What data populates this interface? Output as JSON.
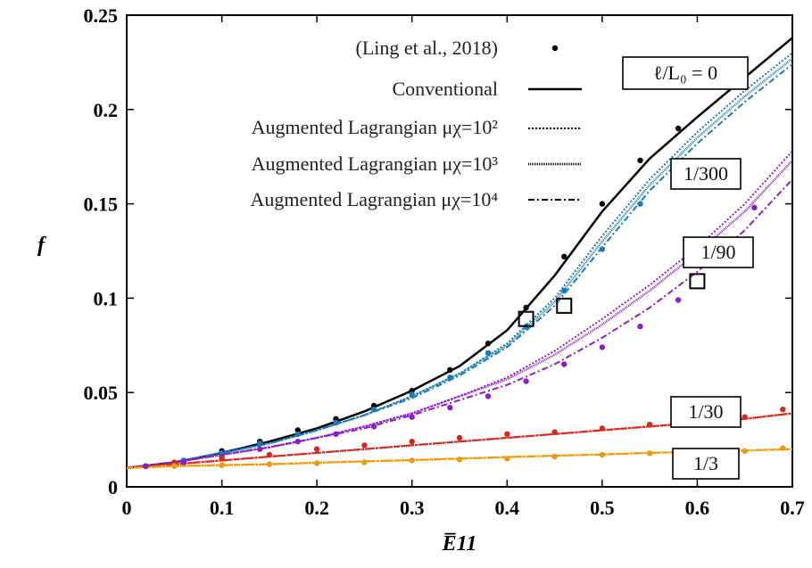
{
  "chart_data": {
    "type": "line",
    "xlabel": "E̅11",
    "ylabel": "f",
    "xlim": [
      0,
      0.7
    ],
    "ylim": [
      0,
      0.25
    ],
    "xticks": [
      "0",
      "0.1",
      "0.2",
      "0.3",
      "0.4",
      "0.5",
      "0.6",
      "0.7"
    ],
    "yticks": [
      "0",
      "0.05",
      "0.1",
      "0.15",
      "0.2",
      "0.25"
    ],
    "grid": false,
    "legend_position": "top-right",
    "legend": [
      {
        "label": "(Ling et al., 2018)",
        "style": "dots"
      },
      {
        "label": "Conventional",
        "style": "solid"
      },
      {
        "label": "Augmented Lagrangian μχ=10²",
        "style": "dotted"
      },
      {
        "label": "Augmented Lagrangian μχ=10³",
        "style": "fine-dotted"
      },
      {
        "label": "Augmented Lagrangian μχ=10⁴",
        "style": "dash-dot"
      }
    ],
    "curve_labels": [
      "ℓ/L₀ = 0",
      "1/300",
      "1/90",
      "1/30",
      "1/3"
    ],
    "groups": [
      {
        "label": "ℓ/L₀ = 0",
        "color": "#000000",
        "x": [
          0,
          0.05,
          0.1,
          0.15,
          0.2,
          0.25,
          0.3,
          0.35,
          0.4,
          0.45,
          0.5,
          0.55,
          0.6,
          0.65,
          0.7
        ],
        "conventional": [
          0.01,
          0.013,
          0.018,
          0.024,
          0.031,
          0.04,
          0.051,
          0.064,
          0.083,
          0.112,
          0.146,
          0.174,
          0.196,
          0.217,
          0.238
        ],
        "mu2": [
          0.01,
          0.013,
          0.018,
          0.024,
          0.031,
          0.04,
          0.051,
          0.064,
          0.083,
          0.112,
          0.146,
          0.174,
          0.196,
          0.217,
          0.238
        ],
        "mu3": [
          0.01,
          0.013,
          0.018,
          0.024,
          0.031,
          0.04,
          0.051,
          0.064,
          0.083,
          0.112,
          0.146,
          0.174,
          0.196,
          0.217,
          0.238
        ],
        "mu4": [
          0.01,
          0.013,
          0.018,
          0.024,
          0.031,
          0.04,
          0.051,
          0.064,
          0.083,
          0.112,
          0.146,
          0.174,
          0.196,
          0.217,
          0.238
        ],
        "ling_x": [
          0.02,
          0.06,
          0.1,
          0.14,
          0.18,
          0.22,
          0.26,
          0.3,
          0.34,
          0.38,
          0.42,
          0.46,
          0.5,
          0.54,
          0.58
        ],
        "ling_y": [
          0.011,
          0.014,
          0.019,
          0.024,
          0.03,
          0.036,
          0.043,
          0.051,
          0.062,
          0.076,
          0.095,
          0.122,
          0.15,
          0.173,
          0.19
        ]
      },
      {
        "label": "1/300",
        "color": "#1a7ab5",
        "x": [
          0,
          0.05,
          0.1,
          0.15,
          0.2,
          0.25,
          0.3,
          0.35,
          0.4,
          0.45,
          0.5,
          0.55,
          0.6,
          0.65,
          0.7
        ],
        "mu2": [
          0.01,
          0.013,
          0.018,
          0.023,
          0.03,
          0.038,
          0.048,
          0.06,
          0.076,
          0.1,
          0.133,
          0.163,
          0.188,
          0.21,
          0.23
        ],
        "mu3": [
          0.01,
          0.013,
          0.018,
          0.023,
          0.03,
          0.038,
          0.048,
          0.06,
          0.075,
          0.098,
          0.13,
          0.16,
          0.185,
          0.207,
          0.227
        ],
        "mu4": [
          0.01,
          0.013,
          0.018,
          0.023,
          0.03,
          0.038,
          0.047,
          0.059,
          0.074,
          0.096,
          0.127,
          0.157,
          0.182,
          0.204,
          0.224
        ],
        "ling_x": [
          0.02,
          0.06,
          0.1,
          0.14,
          0.18,
          0.22,
          0.26,
          0.3,
          0.34,
          0.38,
          0.42,
          0.46,
          0.5,
          0.54,
          0.58
        ],
        "ling_y": [
          0.011,
          0.014,
          0.018,
          0.023,
          0.028,
          0.034,
          0.041,
          0.049,
          0.058,
          0.071,
          0.085,
          0.104,
          0.126,
          0.15,
          0.168
        ]
      },
      {
        "label": "1/90",
        "color": "#8a1fc9",
        "x": [
          0,
          0.05,
          0.1,
          0.15,
          0.2,
          0.25,
          0.3,
          0.35,
          0.4,
          0.45,
          0.5,
          0.55,
          0.6,
          0.65,
          0.7
        ],
        "mu2": [
          0.01,
          0.013,
          0.017,
          0.021,
          0.026,
          0.032,
          0.039,
          0.048,
          0.058,
          0.072,
          0.089,
          0.107,
          0.127,
          0.15,
          0.178
        ],
        "mu3": [
          0.01,
          0.013,
          0.017,
          0.021,
          0.026,
          0.032,
          0.039,
          0.048,
          0.057,
          0.07,
          0.086,
          0.104,
          0.124,
          0.146,
          0.173
        ],
        "mu4": [
          0.01,
          0.013,
          0.017,
          0.021,
          0.026,
          0.031,
          0.038,
          0.046,
          0.054,
          0.065,
          0.079,
          0.095,
          0.114,
          0.136,
          0.163
        ],
        "ling_x": [
          0.02,
          0.06,
          0.1,
          0.14,
          0.18,
          0.22,
          0.26,
          0.3,
          0.34,
          0.38,
          0.42,
          0.46,
          0.5,
          0.54,
          0.58,
          0.62,
          0.66
        ],
        "ling_y": [
          0.011,
          0.013,
          0.016,
          0.02,
          0.024,
          0.028,
          0.032,
          0.037,
          0.042,
          0.048,
          0.056,
          0.065,
          0.074,
          0.085,
          0.099,
          0.124,
          0.148
        ]
      },
      {
        "label": "1/30",
        "color": "#d42a1e",
        "x": [
          0,
          0.05,
          0.1,
          0.15,
          0.2,
          0.25,
          0.3,
          0.35,
          0.4,
          0.45,
          0.5,
          0.55,
          0.6,
          0.65,
          0.7
        ],
        "mu2": [
          0.01,
          0.012,
          0.014,
          0.016,
          0.018,
          0.02,
          0.022,
          0.024,
          0.026,
          0.028,
          0.03,
          0.032,
          0.034,
          0.036,
          0.039
        ],
        "mu3": [
          0.01,
          0.012,
          0.014,
          0.016,
          0.018,
          0.02,
          0.022,
          0.024,
          0.026,
          0.028,
          0.03,
          0.032,
          0.034,
          0.036,
          0.039
        ],
        "mu4": [
          0.01,
          0.012,
          0.014,
          0.016,
          0.018,
          0.02,
          0.022,
          0.024,
          0.026,
          0.028,
          0.03,
          0.032,
          0.034,
          0.036,
          0.039
        ],
        "ling_x": [
          0.05,
          0.1,
          0.15,
          0.2,
          0.25,
          0.3,
          0.35,
          0.4,
          0.45,
          0.5,
          0.55,
          0.6,
          0.65,
          0.69
        ],
        "ling_y": [
          0.013,
          0.015,
          0.017,
          0.02,
          0.022,
          0.024,
          0.026,
          0.028,
          0.029,
          0.031,
          0.033,
          0.035,
          0.037,
          0.041
        ]
      },
      {
        "label": "1/3",
        "color": "#e89a10",
        "x": [
          0,
          0.05,
          0.1,
          0.15,
          0.2,
          0.25,
          0.3,
          0.35,
          0.4,
          0.45,
          0.5,
          0.55,
          0.6,
          0.65,
          0.7
        ],
        "mu2": [
          0.01,
          0.011,
          0.0115,
          0.012,
          0.0128,
          0.0135,
          0.0142,
          0.015,
          0.0158,
          0.0165,
          0.0172,
          0.018,
          0.0187,
          0.0193,
          0.02
        ],
        "mu3": [
          0.01,
          0.011,
          0.0115,
          0.012,
          0.0128,
          0.0135,
          0.0142,
          0.015,
          0.0158,
          0.0165,
          0.0172,
          0.018,
          0.0187,
          0.0193,
          0.02
        ],
        "mu4": [
          0.01,
          0.011,
          0.0115,
          0.012,
          0.0128,
          0.0135,
          0.0142,
          0.015,
          0.0158,
          0.0165,
          0.0172,
          0.018,
          0.0187,
          0.0193,
          0.02
        ],
        "ling_x": [
          0.05,
          0.1,
          0.15,
          0.2,
          0.25,
          0.3,
          0.35,
          0.4,
          0.45,
          0.5,
          0.55,
          0.6,
          0.65,
          0.69
        ],
        "ling_y": [
          0.011,
          0.0115,
          0.012,
          0.0125,
          0.013,
          0.014,
          0.0145,
          0.015,
          0.016,
          0.017,
          0.0178,
          0.0185,
          0.019,
          0.0205
        ]
      }
    ],
    "markers": [
      {
        "x": 0.42,
        "y": 0.089
      },
      {
        "x": 0.46,
        "y": 0.096
      },
      {
        "x": 0.6,
        "y": 0.109
      }
    ]
  }
}
